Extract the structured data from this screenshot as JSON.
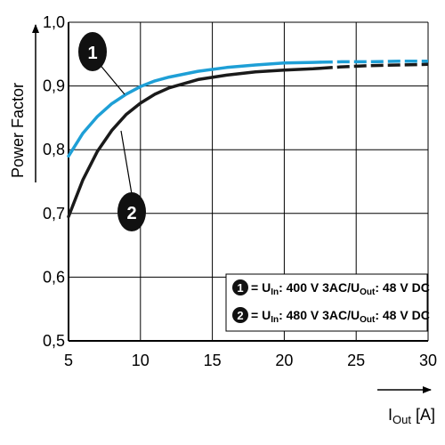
{
  "chart_data": {
    "type": "line",
    "xlabel": {
      "main": "I",
      "sub": "Out",
      "unit": " [A]"
    },
    "ylabel": "Power Factor",
    "xlim": [
      5,
      30
    ],
    "ylim": [
      0.5,
      1.0
    ],
    "x_ticks": [
      "5",
      "10",
      "15",
      "20",
      "25",
      "30"
    ],
    "y_ticks": [
      "0,5",
      "0,6",
      "0,7",
      "0,8",
      "0,9",
      "1,0"
    ],
    "grid": true,
    "legend_position": "bottom-right",
    "series": [
      {
        "marker": "1",
        "color": "#1e9fd6",
        "legend": {
          "pre": "= U",
          "sub1": "In",
          "mid": ": 400 V 3AC/U",
          "sub2": "Out",
          "post": ": 48 V DC"
        },
        "x": [
          5,
          6,
          7,
          8,
          9,
          10,
          11,
          12,
          14,
          16,
          18,
          20,
          22,
          24,
          26,
          28,
          30
        ],
        "y": [
          0.79,
          0.826,
          0.852,
          0.872,
          0.887,
          0.899,
          0.908,
          0.914,
          0.923,
          0.929,
          0.933,
          0.936,
          0.937,
          0.938,
          0.938,
          0.939,
          0.939
        ],
        "solid_until": 22.5
      },
      {
        "marker": "2",
        "color": "#1a1a1a",
        "legend": {
          "pre": "= U",
          "sub1": "In",
          "mid": ": 480 V 3AC/U",
          "sub2": "Out",
          "post": ": 48 V DC"
        },
        "x": [
          5,
          6,
          7,
          8,
          9,
          10,
          11,
          12,
          14,
          16,
          18,
          20,
          22,
          24,
          26,
          28,
          30
        ],
        "y": [
          0.695,
          0.753,
          0.797,
          0.83,
          0.855,
          0.873,
          0.887,
          0.897,
          0.91,
          0.917,
          0.922,
          0.925,
          0.927,
          0.93,
          0.932,
          0.933,
          0.934
        ],
        "solid_until": 22.5
      }
    ]
  }
}
